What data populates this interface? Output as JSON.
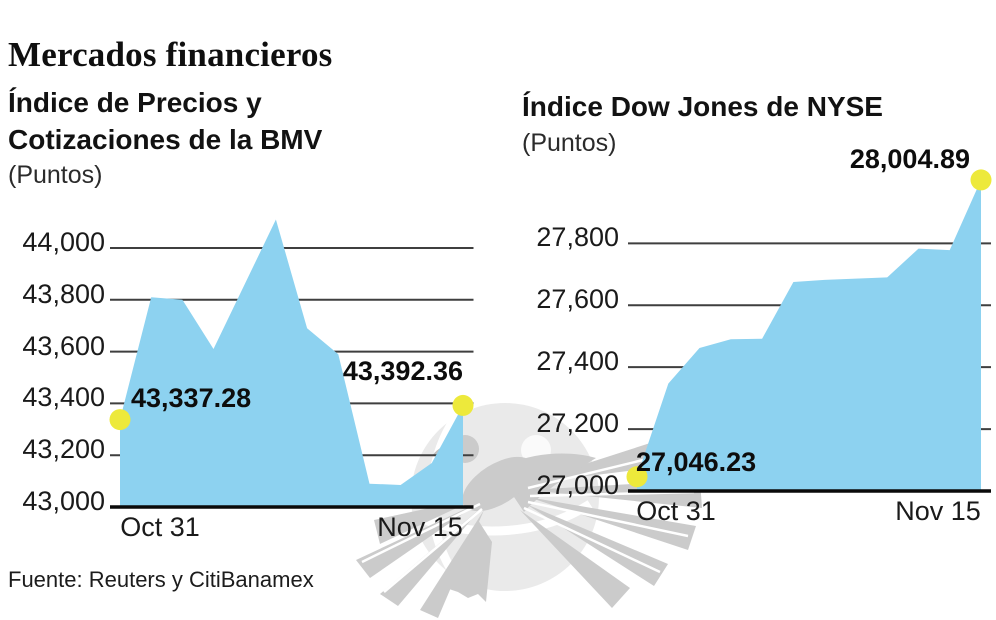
{
  "header": {
    "title": "Mercados financieros"
  },
  "source": {
    "text": "Fuente: Reuters y CitiBanamex"
  },
  "watermark": {
    "description": "eagle-over-globe-logo-watermark"
  },
  "palette": {
    "gridline": "#3f3f3f",
    "baseline": "#0a0a0a",
    "area_blue": "#8DD2F0",
    "marker_yellow": "#EDE93B",
    "text_dark": "#121212",
    "watermark_gray": "#cbcbcb",
    "globe_gray": "#eaeaea"
  },
  "chart_data": [
    {
      "type": "area",
      "title": "Índice de Precios y Cotizaciones de la BMV",
      "subtitle": "(Puntos)",
      "x_tick_labels": [
        "Oct 31",
        "Nov 15"
      ],
      "y_ticks": [
        {
          "value": 44000,
          "label": "44,000"
        },
        {
          "value": 43800,
          "label": "43,800"
        },
        {
          "value": 43600,
          "label": "43,600"
        },
        {
          "value": 43400,
          "label": "43,400"
        },
        {
          "value": 43200,
          "label": "43,200"
        },
        {
          "value": 43000,
          "label": "43,000"
        }
      ],
      "ylim": [
        43000,
        44150
      ],
      "grid": true,
      "legend": "none",
      "values": [
        43337.28,
        43810,
        43800,
        43610,
        43860,
        44110,
        43690,
        43590,
        43090,
        43085,
        43170,
        43392.36
      ],
      "start_point": {
        "label": "43,337.28",
        "value": 43337.28
      },
      "end_point": {
        "label": "43,392.36",
        "value": 43392.36
      },
      "colors": {
        "area": "#8DD2F0",
        "marker": "#EDE93B"
      }
    },
    {
      "type": "area",
      "title": "Índice Dow Jones de NYSE",
      "subtitle": "(Puntos)",
      "x_tick_labels": [
        "Oct 31",
        "Nov 15"
      ],
      "y_ticks": [
        {
          "value": 27800,
          "label": "27,800"
        },
        {
          "value": 27600,
          "label": "27,600"
        },
        {
          "value": 27400,
          "label": "27,400"
        },
        {
          "value": 27200,
          "label": "27,200"
        },
        {
          "value": 27000,
          "label": "27,000"
        }
      ],
      "ylim": [
        27000,
        28050
      ],
      "grid": true,
      "legend": "none",
      "values": [
        27046.23,
        27347,
        27462,
        27490,
        27492,
        27675,
        27682,
        27686,
        27690,
        27783,
        27778,
        28004.89
      ],
      "start_point": {
        "label": "27,046.23",
        "value": 27046.23
      },
      "end_point": {
        "label": "28,004.89",
        "value": 28004.89
      },
      "colors": {
        "area": "#8DD2F0",
        "marker": "#EDE93B"
      }
    }
  ]
}
